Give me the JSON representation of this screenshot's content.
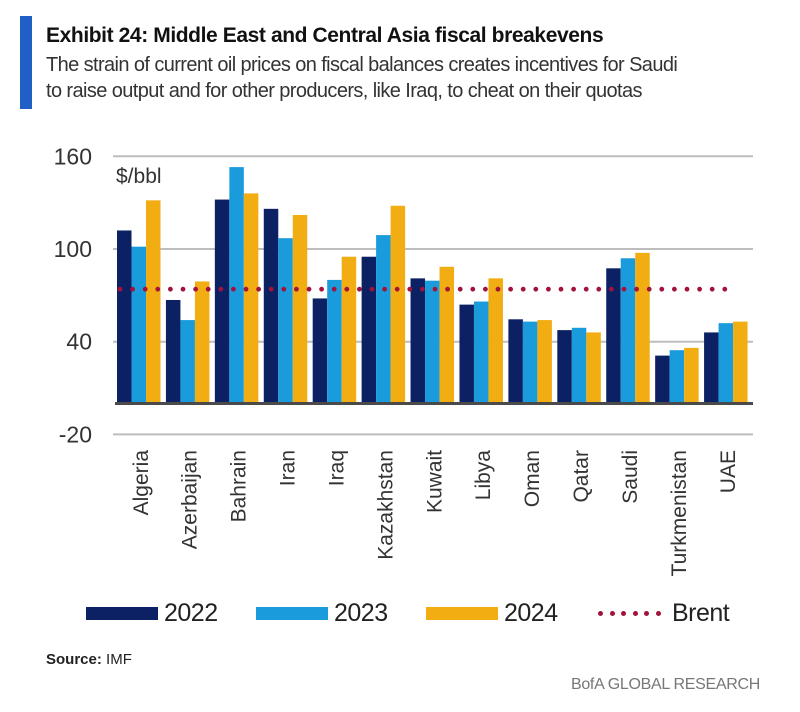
{
  "header": {
    "title": "Exhibit 24: Middle East and Central Asia fiscal breakevens",
    "subtitle_lines": [
      "The strain of current oil prices on fiscal balances creates incentives for Saudi",
      "to raise output and for other producers, like Iraq, to cheat on their quotas"
    ]
  },
  "colors": {
    "accent": "#1f5fc6",
    "series_2022": "#0b2163",
    "series_2023": "#1a9bdb",
    "series_2024": "#f2ad13",
    "brent": "#a3123a",
    "grid": "#bdbdbd",
    "baseline": "#4a4a4a"
  },
  "chart_data": {
    "type": "bar",
    "title": "Exhibit 24: Middle East and Central Asia fiscal breakevens",
    "unit_label": "$/bbl",
    "xlabel": "",
    "ylabel": "$/bbl",
    "ylim": [
      -20,
      160
    ],
    "yticks": [
      160,
      100,
      40,
      -20
    ],
    "grid": true,
    "legend_position": "bottom",
    "categories": [
      "Algeria",
      "Azerbaijan",
      "Bahrain",
      "Iran",
      "Iraq",
      "Kazakhstan",
      "Kuwait",
      "Libya",
      "Oman",
      "Qatar",
      "Saudi",
      "Turkmenistan",
      "UAE"
    ],
    "series": [
      {
        "name": "2022",
        "values": [
          112,
          67,
          132,
          126,
          68,
          95,
          81,
          64,
          54.5,
          47.5,
          87.5,
          31,
          46
        ]
      },
      {
        "name": "2023",
        "values": [
          101.5,
          54,
          153,
          107,
          80,
          109,
          79.5,
          66,
          53,
          49,
          94,
          34.5,
          52
        ]
      },
      {
        "name": "2024",
        "values": [
          131.5,
          79,
          136,
          122,
          95,
          128,
          88.5,
          81,
          54,
          46,
          97.5,
          36,
          53
        ]
      }
    ],
    "reference_lines": [
      {
        "name": "Brent",
        "value": 74,
        "style": "dotted"
      }
    ]
  },
  "legend": {
    "items": [
      {
        "label": "2022"
      },
      {
        "label": "2023"
      },
      {
        "label": "2024"
      },
      {
        "label": "Brent"
      }
    ]
  },
  "footer": {
    "source_label": "Source:",
    "source_value": "IMF",
    "brand": "BofA GLOBAL RESEARCH"
  }
}
